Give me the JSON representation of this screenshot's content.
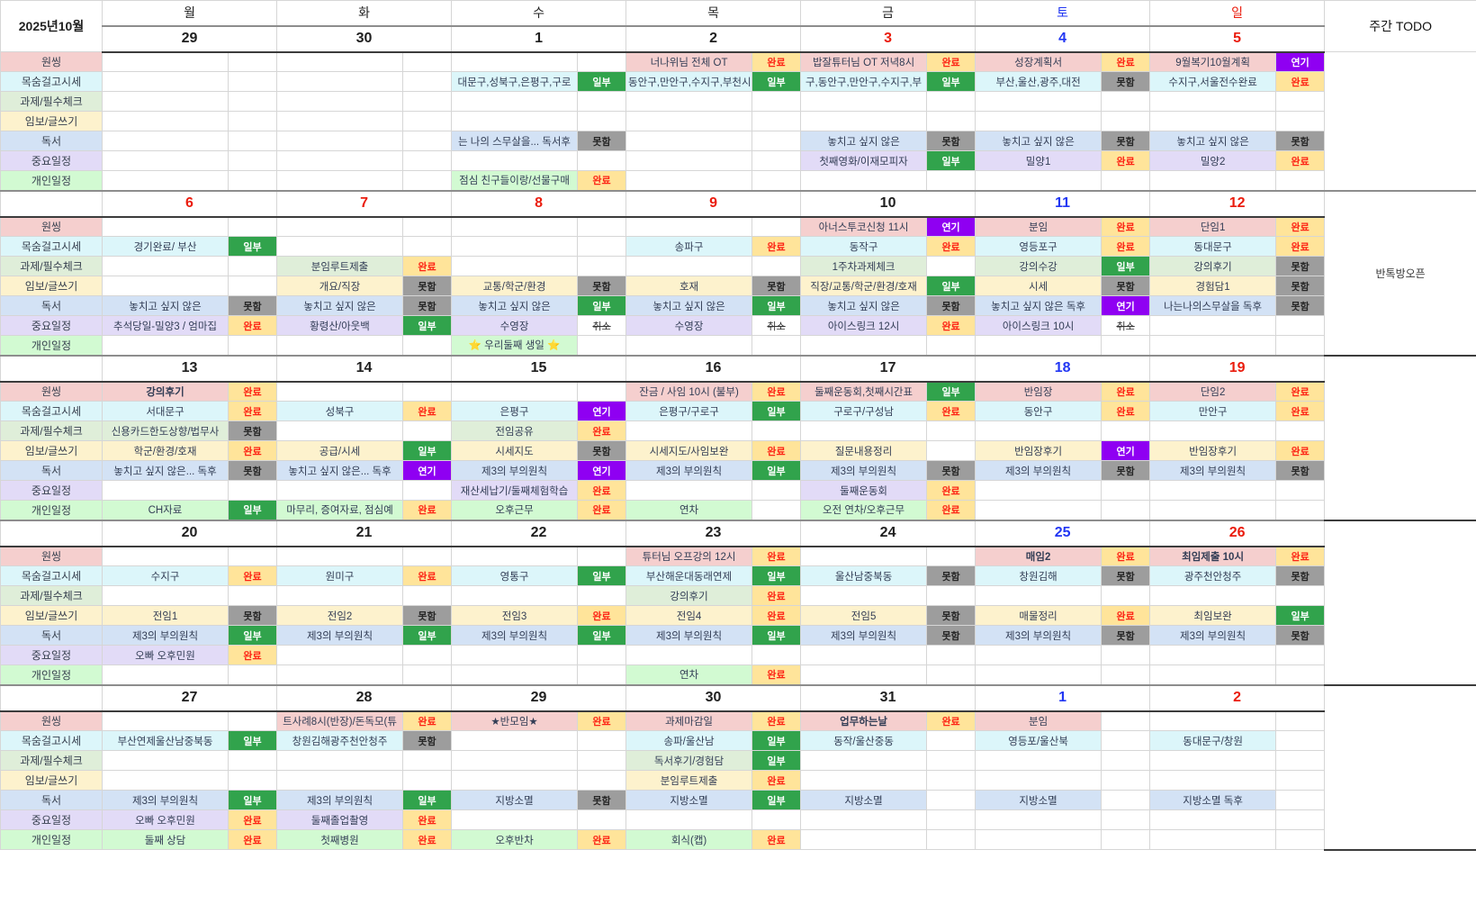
{
  "title": "2025년10월",
  "todo_header": "주간 TODO",
  "weekdays": [
    {
      "label": "월",
      "color": "#222222"
    },
    {
      "label": "화",
      "color": "#222222"
    },
    {
      "label": "수",
      "color": "#222222"
    },
    {
      "label": "목",
      "color": "#222222"
    },
    {
      "label": "금",
      "color": "#222222"
    },
    {
      "label": "토",
      "color": "#2136f3"
    },
    {
      "label": "일",
      "color": "#ea1c0d"
    }
  ],
  "date_colors": {
    "k": "#1f1f1f",
    "r": "#ea1c0d",
    "b": "#2136f3"
  },
  "badge_labels": {
    "done": "완료",
    "partial": "일부",
    "failed": "못함",
    "postponed": "연기",
    "cancelled": "취소"
  },
  "categories": [
    {
      "label": "원씽",
      "color": "#f5cfce"
    },
    {
      "label": "목숨걸고시세",
      "color": "#dcf6fa"
    },
    {
      "label": "과제/필수체크",
      "color": "#dfeed9"
    },
    {
      "label": "임보/글쓰기",
      "color": "#fdf2cd"
    },
    {
      "label": "독서",
      "color": "#d3e2f5"
    },
    {
      "label": "중요일정",
      "color": "#e2dbf7"
    },
    {
      "label": "개인일정",
      "color": "#d2fad2"
    }
  ],
  "weeks": [
    {
      "dates": [
        {
          "d": "29",
          "c": "k"
        },
        {
          "d": "30",
          "c": "k"
        },
        {
          "d": "1",
          "c": "k"
        },
        {
          "d": "2",
          "c": "k"
        },
        {
          "d": "3",
          "c": "r"
        },
        {
          "d": "4",
          "c": "b"
        },
        {
          "d": "5",
          "c": "r"
        }
      ],
      "todo": "",
      "rows": [
        [
          null,
          null,
          null,
          [
            "너나위님 전체 OT",
            "done"
          ],
          [
            "밥잘튜터님 OT 저녁8시",
            "done"
          ],
          [
            "성장계획서",
            "done"
          ],
          [
            "9월복기10월계획",
            "postponed"
          ]
        ],
        [
          null,
          null,
          [
            "대문구,성북구,은평구,구로",
            "partial"
          ],
          [
            "동안구,만안구,수지구,부천시",
            "partial"
          ],
          [
            "구,동안구,만안구,수지구,부",
            "partial"
          ],
          [
            "부산,울산,광주,대전",
            "failed"
          ],
          [
            "수지구,서울전수완료",
            "done"
          ]
        ],
        [
          null,
          null,
          null,
          null,
          null,
          null,
          null
        ],
        [
          null,
          null,
          null,
          null,
          null,
          null,
          null
        ],
        [
          null,
          null,
          [
            "는 나의 스무살을... 독서후",
            "failed"
          ],
          null,
          [
            "놓치고 싶지 않은",
            "failed"
          ],
          [
            "놓치고 싶지 않은",
            "failed"
          ],
          [
            "놓치고 싶지 않은",
            "failed"
          ]
        ],
        [
          null,
          null,
          null,
          null,
          [
            "첫째영화/이재모피자",
            "partial"
          ],
          [
            "밀양1",
            "done"
          ],
          [
            "밀양2",
            "done"
          ]
        ],
        [
          null,
          null,
          [
            "점심 친구들이랑/선물구매",
            "done"
          ],
          null,
          null,
          null,
          null
        ]
      ]
    },
    {
      "dates": [
        {
          "d": "6",
          "c": "r"
        },
        {
          "d": "7",
          "c": "r"
        },
        {
          "d": "8",
          "c": "r"
        },
        {
          "d": "9",
          "c": "r"
        },
        {
          "d": "10",
          "c": "k"
        },
        {
          "d": "11",
          "c": "b"
        },
        {
          "d": "12",
          "c": "r"
        }
      ],
      "todo": "반톡방오픈",
      "rows": [
        [
          null,
          null,
          null,
          null,
          [
            "아너스투코신청 11시",
            "postponed"
          ],
          [
            "분임",
            "done"
          ],
          [
            "단임1",
            "done"
          ]
        ],
        [
          [
            "경기완료/ 부산",
            "partial"
          ],
          null,
          null,
          [
            "송파구",
            "done"
          ],
          [
            "동작구",
            "done"
          ],
          [
            "영등포구",
            "done"
          ],
          [
            "동대문구",
            "done"
          ]
        ],
        [
          null,
          [
            "분임루트제출",
            "done"
          ],
          null,
          null,
          [
            "1주차과제체크",
            ""
          ],
          [
            "강의수강",
            "partial"
          ],
          [
            "강의후기",
            "failed"
          ]
        ],
        [
          null,
          [
            "개요/직장",
            "failed"
          ],
          [
            "교통/학군/환경",
            "failed"
          ],
          [
            "호재",
            "failed"
          ],
          [
            "직장/교통/학군/환경/호재",
            "partial"
          ],
          [
            "시세",
            "failed"
          ],
          [
            "경험담1",
            "failed"
          ]
        ],
        [
          [
            "놓치고 싶지 않은",
            "failed"
          ],
          [
            "놓치고 싶지 않은",
            "failed"
          ],
          [
            "놓치고 싶지 않은",
            "partial"
          ],
          [
            "놓치고 싶지 않은",
            "partial"
          ],
          [
            "놓치고 싶지 않은",
            "failed"
          ],
          [
            "놓치고 싶지 않은 독후",
            "postponed"
          ],
          [
            "나는나의스무살을 독후",
            "failed"
          ]
        ],
        [
          [
            "추석당일-밀양3 / 엄마집",
            "done"
          ],
          [
            "황령산/아웃백",
            "partial"
          ],
          [
            "수영장",
            "cancelled"
          ],
          [
            "수영장",
            "cancelled"
          ],
          [
            "아이스링크 12시",
            "done"
          ],
          [
            "아이스링크 10시",
            "cancelled"
          ],
          null
        ],
        [
          null,
          null,
          [
            "⭐ 우리둘째 생일 ⭐",
            ""
          ],
          null,
          null,
          null,
          null
        ]
      ]
    },
    {
      "dates": [
        {
          "d": "13",
          "c": "k"
        },
        {
          "d": "14",
          "c": "k"
        },
        {
          "d": "15",
          "c": "k"
        },
        {
          "d": "16",
          "c": "k"
        },
        {
          "d": "17",
          "c": "k"
        },
        {
          "d": "18",
          "c": "b"
        },
        {
          "d": "19",
          "c": "r"
        }
      ],
      "todo": "",
      "rows": [
        [
          [
            "강의후기",
            "done",
            1
          ],
          null,
          null,
          [
            "잔금 / 사임 10시 (불부)",
            "done"
          ],
          [
            "둘째운동회,첫째시간표",
            "partial"
          ],
          [
            "반임장",
            "done"
          ],
          [
            "단임2",
            "done"
          ]
        ],
        [
          [
            "서대문구",
            "done"
          ],
          [
            "성북구",
            "done"
          ],
          [
            "은평구",
            "postponed"
          ],
          [
            "은평구/구로구",
            "partial"
          ],
          [
            "구로구/구성남",
            "done"
          ],
          [
            "동안구",
            "done"
          ],
          [
            "만안구",
            "done"
          ]
        ],
        [
          [
            "신용카드한도상향/법무사",
            "failed"
          ],
          null,
          [
            "전임공유",
            "done"
          ],
          null,
          null,
          null,
          null
        ],
        [
          [
            "학군/환경/호재",
            "done"
          ],
          [
            "공급/시세",
            "partial"
          ],
          [
            "시세지도",
            "failed"
          ],
          [
            "시세지도/사임보완",
            "done"
          ],
          [
            "질문내용정리",
            ""
          ],
          [
            "반임장후기",
            "postponed"
          ],
          [
            "반임장후기",
            "done"
          ]
        ],
        [
          [
            "놓치고 싶지 않은... 독후",
            "failed"
          ],
          [
            "놓치고 싶지 않은... 독후",
            "postponed"
          ],
          [
            "제3의 부의원칙",
            "postponed"
          ],
          [
            "제3의 부의원칙",
            "partial"
          ],
          [
            "제3의 부의원칙",
            "failed"
          ],
          [
            "제3의 부의원칙",
            "failed"
          ],
          [
            "제3의 부의원칙",
            "failed"
          ]
        ],
        [
          null,
          null,
          [
            "재산세납기/둘째체험학습",
            "done"
          ],
          null,
          [
            "둘째운동회",
            "done"
          ],
          null,
          null
        ],
        [
          [
            "CH자료",
            "partial"
          ],
          [
            "마무리, 증여자료, 점심예",
            "done"
          ],
          [
            "오후근무",
            "done"
          ],
          [
            "연차",
            ""
          ],
          [
            "오전 연차/오후근무",
            "done"
          ],
          null,
          null
        ]
      ]
    },
    {
      "dates": [
        {
          "d": "20",
          "c": "k"
        },
        {
          "d": "21",
          "c": "k"
        },
        {
          "d": "22",
          "c": "k"
        },
        {
          "d": "23",
          "c": "k"
        },
        {
          "d": "24",
          "c": "k"
        },
        {
          "d": "25",
          "c": "b"
        },
        {
          "d": "26",
          "c": "r"
        }
      ],
      "todo": "",
      "rows": [
        [
          null,
          null,
          null,
          [
            "튜터님 오프강의 12시",
            "done"
          ],
          null,
          [
            "매임2",
            "done",
            1
          ],
          [
            "최임제출 10시",
            "done",
            1
          ]
        ],
        [
          [
            "수지구",
            "done"
          ],
          [
            "원미구",
            "done"
          ],
          [
            "영통구",
            "partial"
          ],
          [
            "부산해운대동래연제",
            "partial"
          ],
          [
            "울산남중북동",
            "failed"
          ],
          [
            "창원김해",
            "failed"
          ],
          [
            "광주천안청주",
            "failed"
          ]
        ],
        [
          null,
          null,
          null,
          [
            "강의후기",
            "done"
          ],
          null,
          null,
          null
        ],
        [
          [
            "전임1",
            "failed"
          ],
          [
            "전임2",
            "failed"
          ],
          [
            "전임3",
            "done"
          ],
          [
            "전임4",
            "done"
          ],
          [
            "전임5",
            "failed"
          ],
          [
            "매물정리",
            "done"
          ],
          [
            "최임보완",
            "partial"
          ]
        ],
        [
          [
            "제3의 부의원칙",
            "partial"
          ],
          [
            "제3의 부의원칙",
            "partial"
          ],
          [
            "제3의 부의원칙",
            "partial"
          ],
          [
            "제3의 부의원칙",
            "partial"
          ],
          [
            "제3의 부의원칙",
            "failed"
          ],
          [
            "제3의 부의원칙",
            "failed"
          ],
          [
            "제3의 부의원칙",
            "failed"
          ]
        ],
        [
          [
            "오빠 오후민원",
            "done"
          ],
          null,
          null,
          null,
          null,
          null,
          null
        ],
        [
          null,
          null,
          null,
          [
            "연차",
            "done"
          ],
          null,
          null,
          null
        ]
      ]
    },
    {
      "dates": [
        {
          "d": "27",
          "c": "k"
        },
        {
          "d": "28",
          "c": "k"
        },
        {
          "d": "29",
          "c": "k"
        },
        {
          "d": "30",
          "c": "k"
        },
        {
          "d": "31",
          "c": "k"
        },
        {
          "d": "1",
          "c": "b"
        },
        {
          "d": "2",
          "c": "r"
        }
      ],
      "todo": "",
      "rows": [
        [
          null,
          [
            "트사례8시(반장)/돈독모(튜",
            "done"
          ],
          [
            "★반모임★",
            "done"
          ],
          [
            "과제마감일",
            "done"
          ],
          [
            "업무하는날",
            "done",
            1
          ],
          [
            "분임",
            ""
          ],
          null
        ],
        [
          [
            "부산연제울산남중북동",
            "partial"
          ],
          [
            "창원김해광주천안청주",
            "failed"
          ],
          null,
          [
            "송파/울산남",
            "partial"
          ],
          [
            "동작/울산중동",
            ""
          ],
          [
            "영등포/울산북",
            ""
          ],
          [
            "동대문구/창원",
            ""
          ]
        ],
        [
          null,
          null,
          null,
          [
            "독서후기/경험담",
            "partial"
          ],
          null,
          null,
          null
        ],
        [
          null,
          null,
          null,
          [
            "분임루트제출",
            "done"
          ],
          null,
          null,
          null
        ],
        [
          [
            "제3의 부의원칙",
            "partial"
          ],
          [
            "제3의 부의원칙",
            "partial"
          ],
          [
            "지방소멸",
            "failed"
          ],
          [
            "지방소멸",
            "partial"
          ],
          [
            "지방소멸",
            ""
          ],
          [
            "지방소멸",
            ""
          ],
          [
            "지방소멸 독후",
            ""
          ]
        ],
        [
          [
            "오빠 오후민원",
            "done"
          ],
          [
            "둘째졸업촬영",
            "done"
          ],
          null,
          null,
          null,
          null,
          null
        ],
        [
          [
            "둘째 상담",
            "done"
          ],
          [
            "첫째병원",
            "done"
          ],
          [
            "오후반차",
            "done"
          ],
          [
            "회식(캡)",
            "done"
          ],
          null,
          null,
          null
        ]
      ]
    }
  ]
}
